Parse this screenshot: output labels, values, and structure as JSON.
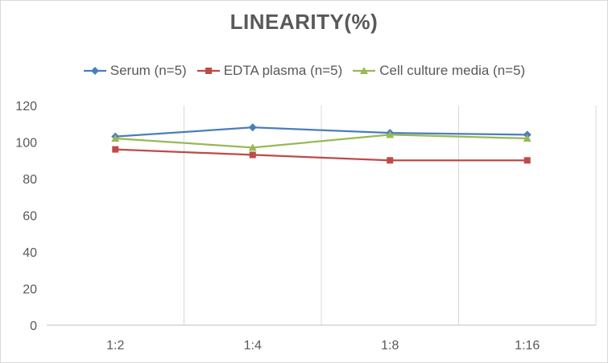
{
  "chart_data": {
    "type": "line",
    "title": "LINEARITY(%)",
    "categories": [
      "1:2",
      "1:4",
      "1:8",
      "1:16"
    ],
    "ylim": [
      0,
      120
    ],
    "yticks": [
      0,
      20,
      40,
      60,
      80,
      100,
      120
    ],
    "grid": "vertical",
    "legend_position": "top",
    "series": [
      {
        "name": "Serum (n=5)",
        "values": [
          103,
          108,
          105,
          104
        ],
        "color": "#4a7ebb",
        "marker": "diamond"
      },
      {
        "name": "EDTA plasma (n=5)",
        "values": [
          96,
          93,
          90,
          90
        ],
        "color": "#be4b48",
        "marker": "square"
      },
      {
        "name": "Cell culture media (n=5)",
        "values": [
          102,
          97,
          104,
          102
        ],
        "color": "#98b954",
        "marker": "triangle"
      }
    ]
  }
}
